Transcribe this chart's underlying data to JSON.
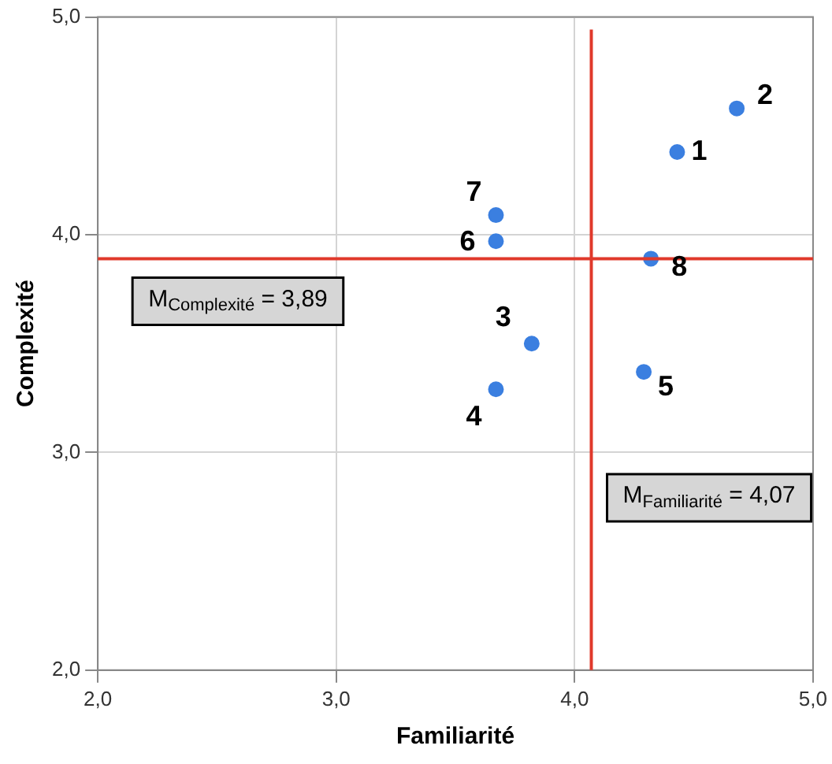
{
  "chart_data": {
    "type": "scatter",
    "xlabel": "Familiarité",
    "ylabel": "Complexité",
    "x": [
      4.43,
      4.68,
      3.82,
      3.67,
      4.29,
      3.67,
      3.67,
      4.32
    ],
    "values": [
      4.38,
      4.58,
      3.5,
      3.29,
      3.37,
      3.97,
      4.09,
      3.89
    ],
    "color": "#3b7fe0",
    "marker": "circle",
    "xlim": [
      2,
      5
    ],
    "ylim": [
      2,
      5
    ],
    "xticks": [
      {
        "value": 2,
        "label": "2,0"
      },
      {
        "value": 3,
        "label": "3,0"
      },
      {
        "value": 4,
        "label": "4,0"
      },
      {
        "value": 5,
        "label": "5,0"
      }
    ],
    "yticks": [
      {
        "value": 2,
        "label": "2,0"
      },
      {
        "value": 3,
        "label": "3,0"
      },
      {
        "value": 4,
        "label": "4,0"
      },
      {
        "value": 5,
        "label": "5,0"
      }
    ],
    "grid": true,
    "legend": false,
    "ref_lines": [
      {
        "axis": "y",
        "value": 3.89,
        "label": "M$_{Complexité}$ = 3,89",
        "color": "#e0392b"
      },
      {
        "axis": "x",
        "value": 4.07,
        "label": "M$_{Familiarité}$ = 4,07",
        "color": "#e0392b"
      }
    ],
    "annotations": [
      {
        "text": "1",
        "x": 4.43,
        "y": 4.38
      },
      {
        "text": "2",
        "x": 4.68,
        "y": 4.58
      },
      {
        "text": "3",
        "x": 3.82,
        "y": 3.5
      },
      {
        "text": "4",
        "x": 3.67,
        "y": 3.29
      },
      {
        "text": "5",
        "x": 4.29,
        "y": 3.37
      },
      {
        "text": "6",
        "x": 3.67,
        "y": 3.97
      },
      {
        "text": "7",
        "x": 3.67,
        "y": 4.09
      },
      {
        "text": "8",
        "x": 4.32,
        "y": 3.89
      }
    ]
  }
}
